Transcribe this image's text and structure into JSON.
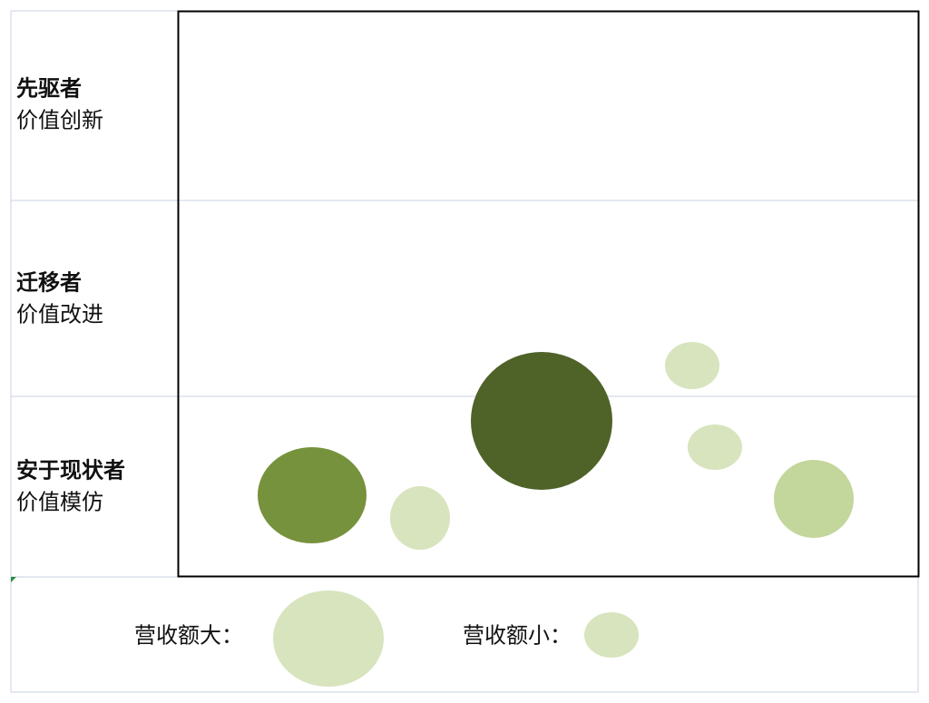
{
  "rows": [
    {
      "title": "先驱者",
      "subtitle": "价值创新"
    },
    {
      "title": "迁移者",
      "subtitle": "价值改进"
    },
    {
      "title": "安于现状者",
      "subtitle": "价值模仿"
    }
  ],
  "legend": {
    "large": "营收额大：",
    "small": "营收额小："
  }
}
